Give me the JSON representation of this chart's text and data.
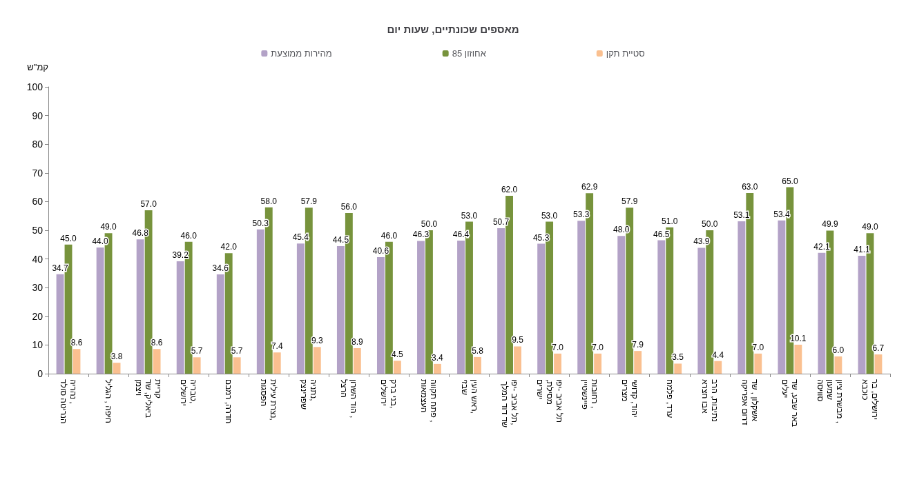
{
  "chart_data": {
    "type": "bar",
    "title": "מאספים שכונתיים, שעות יום",
    "ylabel": "קמ\"ש",
    "categories": [
      "נהריה , הנריטה סולד",
      "חיפה , הגליל",
      "קריית ביאליק, שד ויצמן",
      "טבריה, ירושלים",
      "חדרה, רמבם",
      "נצרת עילית, הפסגות",
      "נתניה, שפרינצק",
      "הוד השרון , הרצל",
      "בני ברק, ירושלים",
      "פתח תקווה , העצמאות",
      "ראש העין, שבזי",
      "תל אביב -יפו, שד דוד המלך",
      "תל אביב -יפו ,מסילת ישרים",
      "רחובות , פיינשטיין",
      "יהוד, קדושי מצרים",
      "ערד, פלמח",
      "נתיבות, הרב אבו חצרא",
      "אשקלון , שד דרום אפריקה",
      "באר שבע, שד יעלים",
      "מבשרת ציון , שמעון סוויסה",
      "ירושלים, בר כוכבא"
    ],
    "series": [
      {
        "name": "מהירות ממוצעת",
        "color": "#b3a2c7",
        "values": [
          34.7,
          44.0,
          46.8,
          39.2,
          34.6,
          50.3,
          45.4,
          44.5,
          40.6,
          46.3,
          46.4,
          50.7,
          45.3,
          53.3,
          48.0,
          46.5,
          43.9,
          53.1,
          53.4,
          42.1,
          41.1
        ],
        "value_labels": [
          "34.7",
          "44.0",
          "46.8",
          "39.2",
          "34.6",
          "50.3",
          "45.4",
          "44.5",
          "40.6",
          "46.3",
          "46.4",
          "50.7",
          "45.3",
          "53.3",
          "48.0",
          "46.5",
          "43.9",
          "53.1",
          "53.4",
          "42.1",
          "41.1"
        ]
      },
      {
        "name": "אחוזון 85",
        "color": "#77933c",
        "values": [
          45.0,
          49.0,
          57.0,
          46.0,
          42.0,
          58.0,
          57.9,
          56.0,
          46.0,
          50.0,
          53.0,
          62.0,
          53.0,
          62.9,
          57.9,
          51.0,
          50.0,
          63.0,
          65.0,
          49.9,
          49.0
        ],
        "value_labels": [
          "45.0",
          "49.0",
          "57.0",
          "46.0",
          "42.0",
          "58.0",
          "57.9",
          "56.0",
          "46.0",
          "50.0",
          "53.0",
          "62.0",
          "53.0",
          "62.9",
          "57.9",
          "51.0",
          "50.0",
          "63.0",
          "65.0",
          "49.9",
          "49.0"
        ]
      },
      {
        "name": "סטיית תקן",
        "color": "#fac090",
        "values": [
          8.6,
          3.8,
          8.6,
          5.7,
          5.7,
          7.4,
          9.3,
          8.9,
          4.5,
          3.4,
          5.8,
          9.5,
          7.0,
          7.0,
          7.9,
          3.5,
          4.4,
          7.0,
          10.1,
          6.0,
          6.7
        ],
        "value_labels": [
          "8.6",
          "3.8",
          "8.6",
          "5.7",
          "5.7",
          "7.4",
          "9.3",
          "8.9",
          "4.5",
          "3.4",
          "5.8",
          "9.5",
          "7.0",
          "7.0",
          "7.9",
          "3.5",
          "4.4",
          "7.0",
          "10.1",
          "6.0",
          "6.7"
        ]
      }
    ],
    "ylim": [
      0,
      100
    ],
    "yticks": [
      0,
      10,
      20,
      30,
      40,
      50,
      60,
      70,
      80,
      90,
      100
    ],
    "legend": "top"
  }
}
